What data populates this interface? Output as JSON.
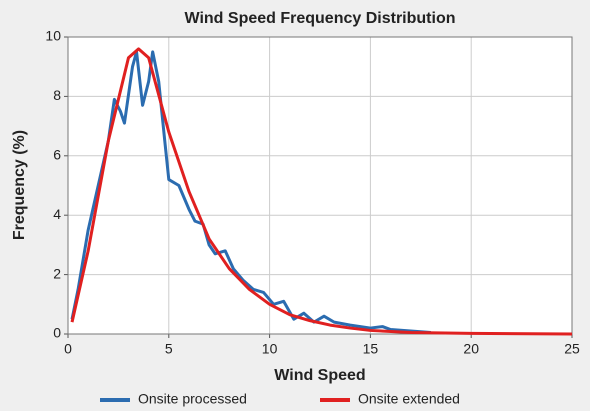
{
  "chart_data": {
    "type": "line",
    "title": "Wind Speed Frequency Distribution",
    "xlabel": "Wind Speed",
    "ylabel": "Frequency (%)",
    "xlim": [
      0,
      25
    ],
    "xticks": [
      0,
      5,
      10,
      15,
      20,
      25
    ],
    "ylim": [
      0,
      10
    ],
    "yticks": [
      0,
      2,
      4,
      6,
      8,
      10
    ],
    "grid": true,
    "legend": "bottom",
    "series": [
      {
        "name": "Onsite processed",
        "color": "#2b6cb0",
        "x": [
          0.2,
          0.5,
          1,
          1.5,
          2,
          2.3,
          2.6,
          2.8,
          3.2,
          3.4,
          3.7,
          4,
          4.2,
          4.5,
          4.8,
          5,
          5.5,
          6,
          6.3,
          6.7,
          7,
          7.3,
          7.8,
          8.2,
          8.7,
          9.2,
          9.7,
          10.2,
          10.7,
          11.2,
          11.7,
          12.2,
          12.7,
          13.2,
          14,
          15,
          15.6,
          16,
          17,
          18
        ],
        "values": [
          0.5,
          1.5,
          3.5,
          5,
          6.5,
          7.9,
          7.5,
          7.1,
          9,
          9.5,
          7.7,
          8.5,
          9.5,
          8.5,
          6.5,
          5.2,
          5.0,
          4.2,
          3.8,
          3.7,
          3.0,
          2.7,
          2.8,
          2.2,
          1.8,
          1.5,
          1.4,
          1.0,
          1.1,
          0.5,
          0.7,
          0.4,
          0.6,
          0.4,
          0.3,
          0.2,
          0.25,
          0.15,
          0.1,
          0.05
        ]
      },
      {
        "name": "Onsite extended",
        "color": "#e02020",
        "x": [
          0.2,
          1,
          2,
          3,
          3.5,
          4,
          5,
          6,
          7,
          8,
          9,
          10,
          11,
          12,
          13,
          14,
          15,
          17,
          20,
          25
        ],
        "values": [
          0.4,
          2.8,
          6.5,
          9.3,
          9.6,
          9.3,
          6.8,
          4.8,
          3.2,
          2.2,
          1.5,
          1.0,
          0.65,
          0.45,
          0.3,
          0.2,
          0.12,
          0.05,
          0.02,
          0.0
        ]
      }
    ]
  }
}
